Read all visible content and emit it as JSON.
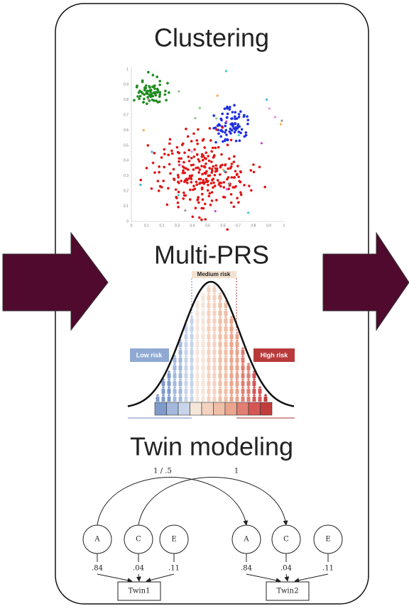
{
  "clustering": {
    "title": "Clustering",
    "x_ticks": [
      "0",
      "0.1",
      "0.2",
      "0.3",
      "0.4",
      "0.5",
      "0.6",
      "0.7",
      "0.8",
      "0.9",
      "1"
    ],
    "y_ticks": [
      "0",
      "0.1",
      "0.2",
      "0.3",
      "0.4",
      "0.5",
      "0.6",
      "0.7",
      "0.8",
      "0.9",
      "1"
    ]
  },
  "multi_prs": {
    "title": "Multi-PRS",
    "medium": "Medium risk",
    "low": "Low risk",
    "high": "High risk"
  },
  "twin_modeling": {
    "title": "Twin modeling",
    "path_labels": [
      "1 / .5",
      "1"
    ],
    "twins": [
      {
        "factors": [
          "A",
          "C",
          "E"
        ],
        "loadings": [
          ".84",
          ".04",
          ".11"
        ],
        "label": "Twin1"
      },
      {
        "factors": [
          "A",
          "C",
          "E"
        ],
        "loadings": [
          ".84",
          ".04",
          ".11"
        ],
        "label": "Twin2"
      }
    ]
  }
}
